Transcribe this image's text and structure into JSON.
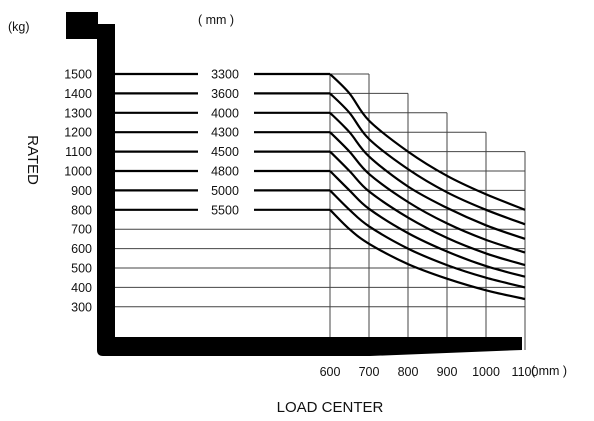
{
  "chart_data": {
    "type": "line",
    "title": "",
    "weight_unit_label": "(kg)",
    "height_unit_label": "( mm )",
    "ylabel": "RATED",
    "xlabel": "LOAD CENTER",
    "x_unit_label": "( mm )",
    "y_ticks": [
      "1500",
      "1400",
      "1300",
      "1200",
      "1100",
      "1000",
      "900",
      "800",
      "700",
      "600",
      "500",
      "400",
      "300"
    ],
    "x_ticks": [
      "600",
      "700",
      "800",
      "900",
      "1000",
      "1100"
    ],
    "ylim": [
      300,
      1500
    ],
    "xlim": [
      600,
      1100
    ],
    "grid": true,
    "series": [
      {
        "name": "3300",
        "x": [
          600,
          650,
          700,
          800,
          900,
          1000,
          1100
        ],
        "y": [
          1500,
          1400,
          1260,
          1100,
          975,
          880,
          800
        ]
      },
      {
        "name": "3600",
        "x": [
          600,
          650,
          700,
          800,
          900,
          1000,
          1100
        ],
        "y": [
          1400,
          1300,
          1165,
          1010,
          890,
          800,
          725
        ]
      },
      {
        "name": "4000",
        "x": [
          600,
          650,
          700,
          800,
          900,
          1000,
          1100
        ],
        "y": [
          1300,
          1200,
          1075,
          920,
          810,
          720,
          650
        ]
      },
      {
        "name": "4300",
        "x": [
          600,
          650,
          700,
          800,
          900,
          1000,
          1100
        ],
        "y": [
          1200,
          1100,
          985,
          840,
          730,
          645,
          580
        ]
      },
      {
        "name": "4500",
        "x": [
          600,
          650,
          700,
          800,
          900,
          1000,
          1100
        ],
        "y": [
          1100,
          1000,
          895,
          760,
          655,
          575,
          515
        ]
      },
      {
        "name": "4800",
        "x": [
          600,
          650,
          700,
          800,
          900,
          1000,
          1100
        ],
        "y": [
          1000,
          900,
          805,
          680,
          585,
          510,
          455
        ]
      },
      {
        "name": "5000",
        "x": [
          600,
          650,
          700,
          800,
          900,
          1000,
          1100
        ],
        "y": [
          900,
          800,
          715,
          600,
          515,
          450,
          400
        ]
      },
      {
        "name": "5500",
        "x": [
          600,
          650,
          700,
          800,
          900,
          1000,
          1100
        ],
        "y": [
          800,
          700,
          625,
          520,
          445,
          385,
          340
        ]
      }
    ]
  }
}
